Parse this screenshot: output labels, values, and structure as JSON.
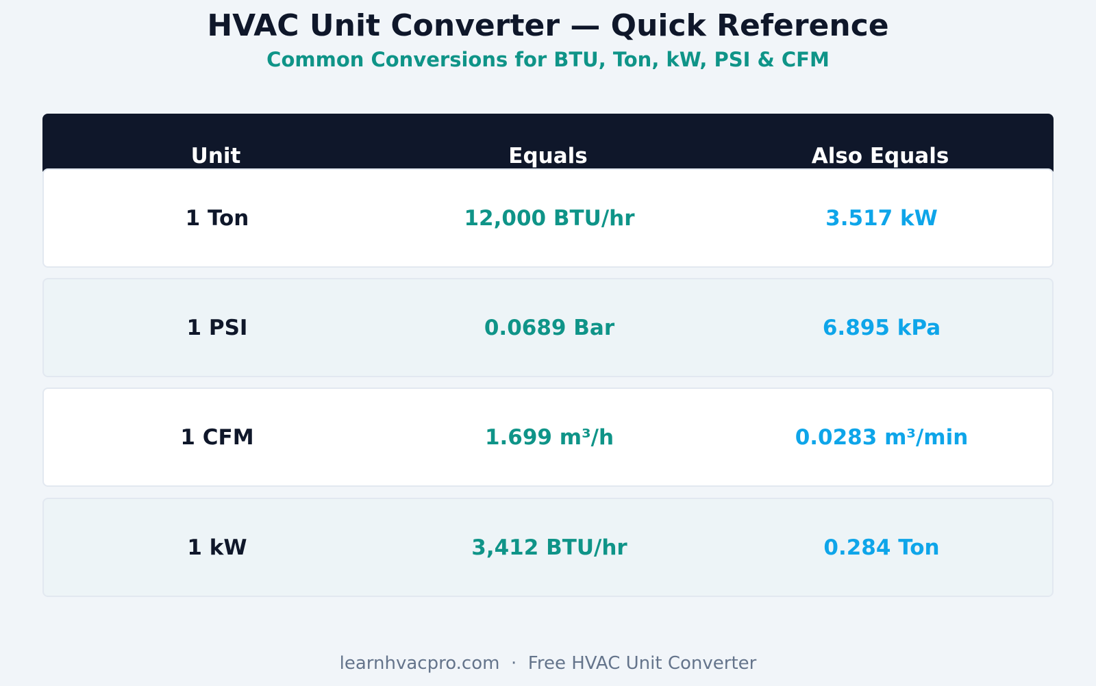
{
  "header": {
    "title": "HVAC Unit Converter — Quick Reference",
    "subtitle": "Common Conversions for BTU, Ton, kW, PSI & CFM"
  },
  "table": {
    "columns": [
      "Unit",
      "Equals",
      "Also Equals"
    ],
    "rows": [
      [
        "1 Ton",
        "12,000 BTU/hr",
        "3.517 kW"
      ],
      [
        "1 PSI",
        "0.0689 Bar",
        "6.895 kPa"
      ],
      [
        "1 CFM",
        "1.699 m³/h",
        "0.0283 m³/min"
      ],
      [
        "1 kW",
        "3,412 BTU/hr",
        "0.284 Ton"
      ]
    ]
  },
  "footer": {
    "text": "learnhvacpro.com  ·  Free HVAC Unit Converter"
  }
}
